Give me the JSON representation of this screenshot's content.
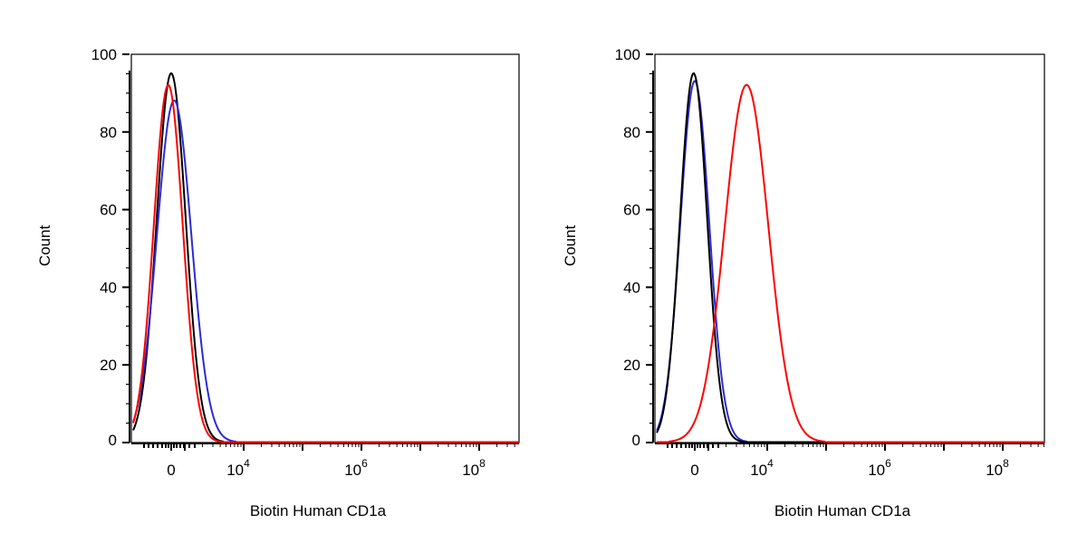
{
  "chart_data": [
    {
      "type": "line",
      "subtype": "flow-cytometry-histogram",
      "xlabel": "Biotin Human CD1a",
      "ylabel": "Count",
      "ylim": [
        0,
        100
      ],
      "yticks": [
        0,
        20,
        40,
        60,
        80,
        100
      ],
      "xscale": "biexponential",
      "xticks": [
        {
          "value": "0",
          "base": "0",
          "exp": ""
        },
        {
          "value": "10^4",
          "base": "10",
          "exp": "4"
        },
        {
          "value": "10^6",
          "base": "10",
          "exp": "6"
        },
        {
          "value": "10^8",
          "base": "10",
          "exp": "8"
        }
      ],
      "grid": false,
      "legend": "none",
      "series": [
        {
          "color": "#000000",
          "peak_x": 0.0,
          "peak_y": 95,
          "width": 0.16
        },
        {
          "color": "#2b2bd6",
          "peak_x": 0.05,
          "peak_y": 88,
          "width": 0.19
        },
        {
          "color": "#ff0000",
          "peak_x": -0.05,
          "peak_y": 92,
          "width": 0.16
        }
      ]
    },
    {
      "type": "line",
      "subtype": "flow-cytometry-histogram",
      "xlabel": "Biotin Human CD1a",
      "ylabel": "Count",
      "ylim": [
        0,
        100
      ],
      "yticks": [
        0,
        20,
        40,
        60,
        80,
        100
      ],
      "xscale": "biexponential",
      "xticks": [
        {
          "value": "0",
          "base": "0",
          "exp": ""
        },
        {
          "value": "10^4",
          "base": "10",
          "exp": "4"
        },
        {
          "value": "10^6",
          "base": "10",
          "exp": "6"
        },
        {
          "value": "10^8",
          "base": "10",
          "exp": "8"
        }
      ],
      "grid": false,
      "legend": "none",
      "series": [
        {
          "color": "#2b2bd6",
          "peak_x": 0.0,
          "peak_y": 93,
          "width": 0.16
        },
        {
          "color": "#000000",
          "peak_x": -0.02,
          "peak_y": 95,
          "width": 0.15
        },
        {
          "color": "#ff0000",
          "peak_x": 0.88,
          "peak_y": 92,
          "width": 0.24
        }
      ]
    }
  ]
}
